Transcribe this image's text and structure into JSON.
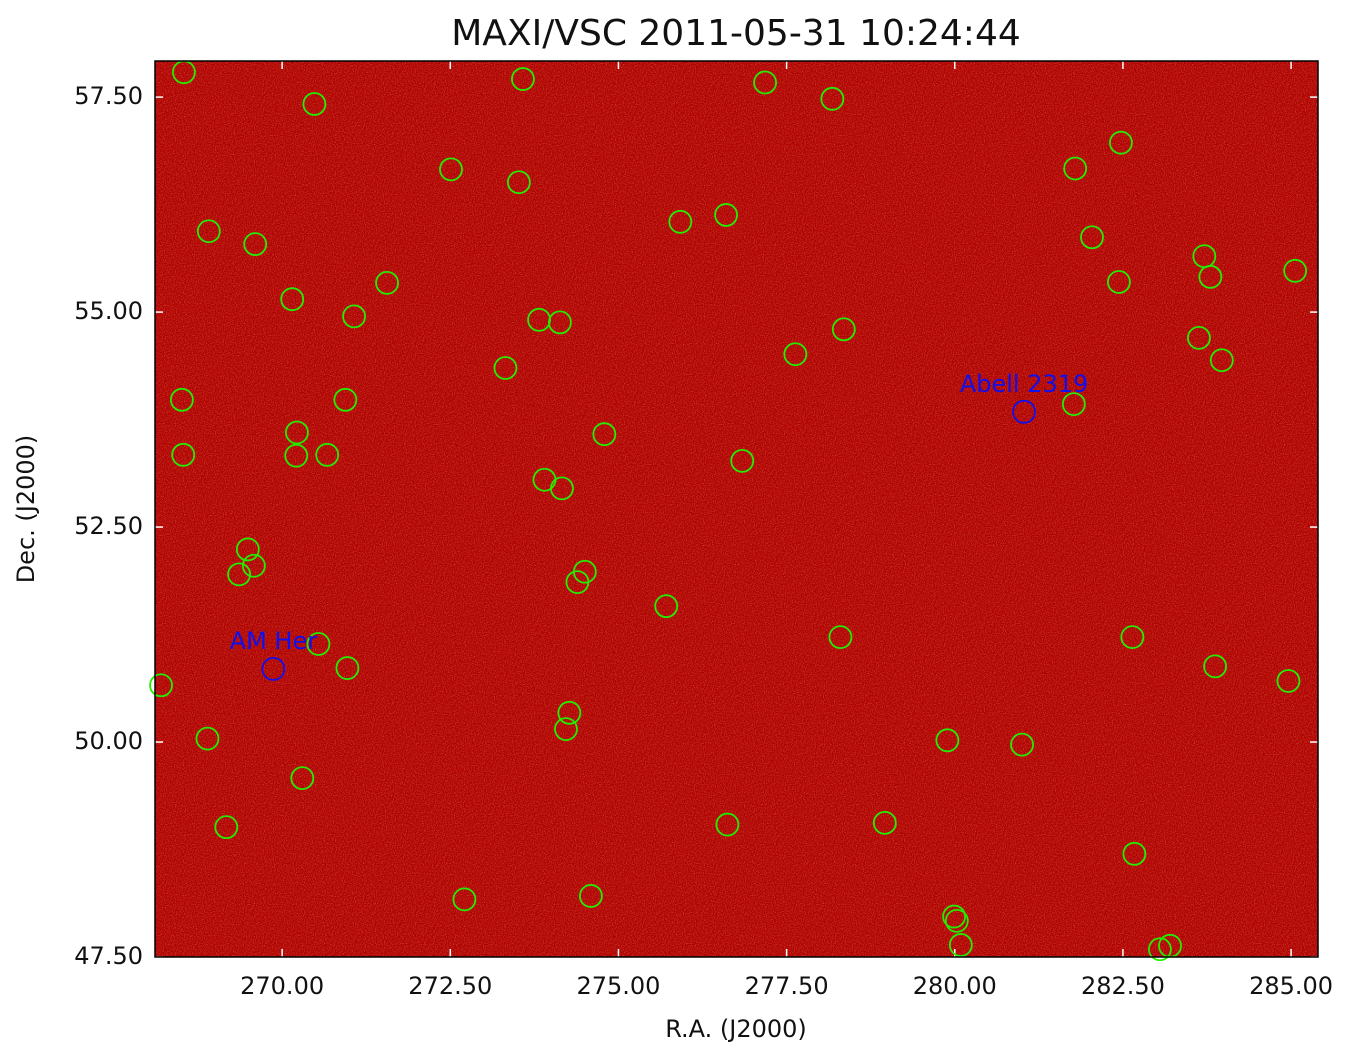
{
  "chart_data": {
    "type": "scatter",
    "title": "MAXI/VSC 2011-05-31 10:24:44",
    "xlabel": "R.A. (J2000)",
    "ylabel": "Dec. (J2000)",
    "xlim": [
      268.11,
      285.4
    ],
    "ylim": [
      47.5,
      57.92
    ],
    "xticks": [
      {
        "value": 270,
        "label": "270.00"
      },
      {
        "value": 272.5,
        "label": "272.50"
      },
      {
        "value": 275,
        "label": "275.00"
      },
      {
        "value": 277.5,
        "label": "277.50"
      },
      {
        "value": 280,
        "label": "280.00"
      },
      {
        "value": 282.5,
        "label": "282.50"
      },
      {
        "value": 285,
        "label": "285.00"
      }
    ],
    "yticks": [
      {
        "value": 47.5,
        "label": "47.50"
      },
      {
        "value": 50,
        "label": "50.00"
      },
      {
        "value": 52.5,
        "label": "52.50"
      },
      {
        "value": 55,
        "label": "55.00"
      },
      {
        "value": 57.5,
        "label": "57.50"
      }
    ],
    "sources": {
      "color": "#22ee00",
      "x": [
        268.54,
        273.58,
        277.18,
        270.48,
        278.18,
        282.47,
        272.51,
        281.79,
        273.52,
        268.91,
        276.6,
        275.92,
        269.6,
        282.04,
        283.71,
        285.06,
        283.8,
        270.15,
        271.56,
        282.44,
        271.07,
        273.82,
        274.13,
        278.35,
        283.63,
        277.63,
        283.97,
        273.32,
        268.51,
        270.94,
        281.77,
        270.22,
        274.79,
        268.53,
        270.21,
        270.67,
        276.84,
        273.9,
        274.16,
        269.49,
        269.58,
        269.36,
        274.5,
        274.39,
        275.71,
        278.3,
        282.64,
        270.54,
        270.97,
        283.87,
        268.2,
        284.96,
        274.27,
        274.22,
        268.89,
        279.89,
        281.0,
        270.3,
        276.62,
        278.96,
        269.17,
        282.67,
        272.71,
        274.59,
        279.99,
        280.03,
        280.09,
        283.05,
        283.2
      ],
      "y": [
        57.79,
        57.71,
        57.67,
        57.42,
        57.48,
        56.97,
        56.66,
        56.67,
        56.51,
        55.94,
        56.13,
        56.05,
        55.79,
        55.87,
        55.65,
        55.48,
        55.41,
        55.15,
        55.34,
        55.35,
        54.95,
        54.91,
        54.88,
        54.8,
        54.7,
        54.51,
        54.44,
        54.35,
        53.98,
        53.98,
        53.93,
        53.6,
        53.58,
        53.34,
        53.33,
        53.34,
        53.27,
        53.05,
        52.95,
        52.24,
        52.05,
        51.95,
        51.98,
        51.86,
        51.58,
        51.22,
        51.22,
        51.14,
        50.86,
        50.88,
        50.66,
        50.71,
        50.34,
        50.15,
        50.04,
        50.02,
        49.97,
        49.58,
        49.04,
        49.06,
        49.01,
        48.7,
        48.17,
        48.21,
        47.97,
        47.92,
        47.64,
        47.59,
        47.63
      ]
    },
    "targets": {
      "color": "#1010ee",
      "labels": [
        "Abell 2319",
        "AM Her"
      ],
      "x": [
        281.03,
        269.87
      ],
      "y": [
        53.84,
        50.85
      ]
    }
  }
}
